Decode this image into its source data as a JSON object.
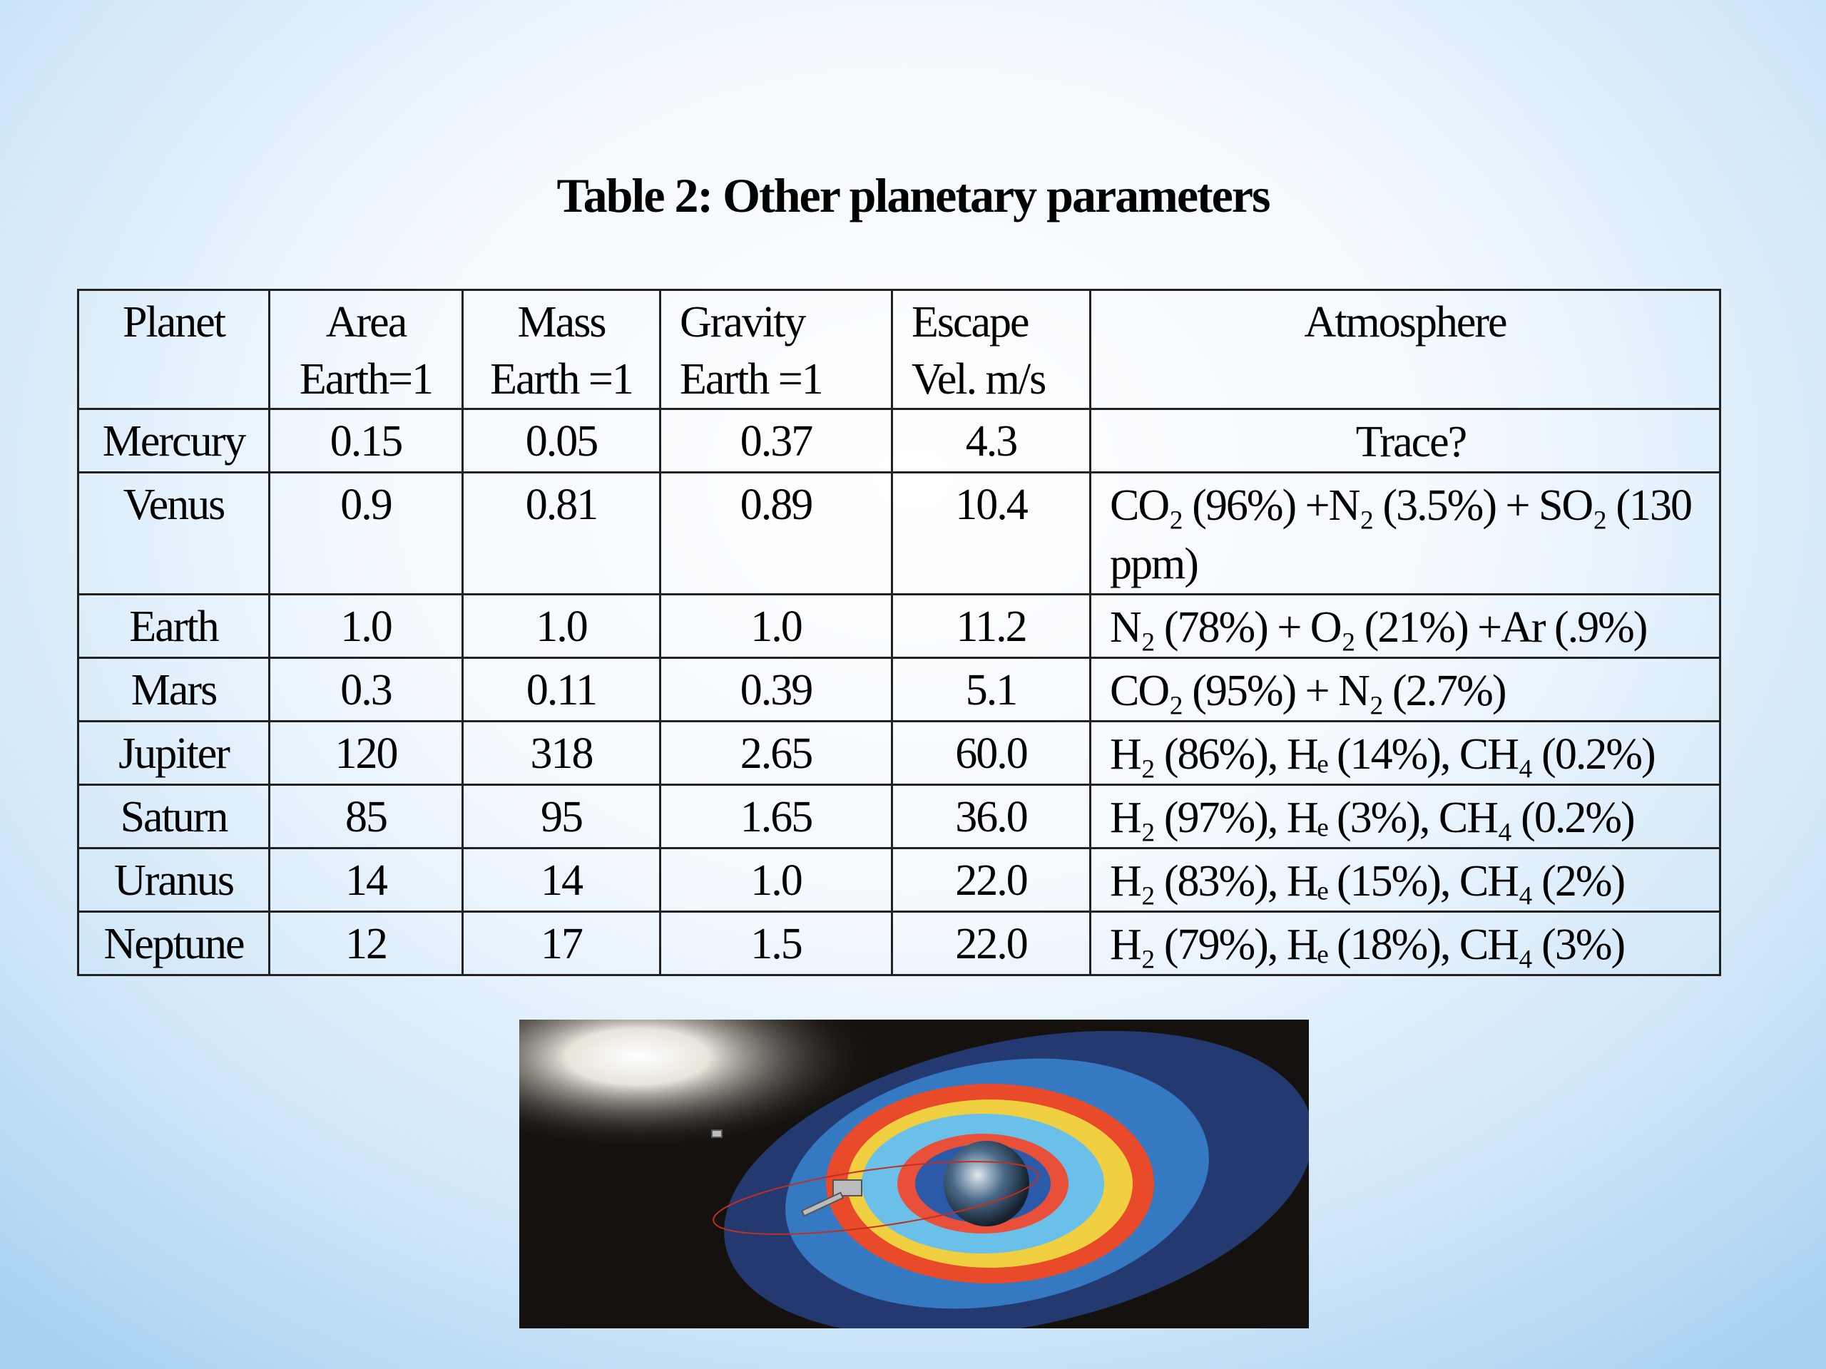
{
  "title": "Table 2: Other planetary parameters",
  "table": {
    "header": [
      [
        "Planet"
      ],
      [
        "Area",
        "Earth=1"
      ],
      [
        "Mass",
        "Earth =1"
      ],
      [
        "Gravity",
        "Earth =1"
      ],
      [
        "Escape",
        "Vel. m/s"
      ],
      [
        "Atmosphere"
      ]
    ],
    "rows": [
      [
        "Mercury",
        "0.15",
        "0.05",
        "0.37",
        "4.3",
        "Trace?"
      ],
      [
        "Venus",
        "0.9",
        "0.81",
        "0.89",
        "10.4",
        "CO₂ (96%) +N₂ (3.5%) + SO₂ (130 ppm)"
      ],
      [
        "Earth",
        "1.0",
        "1.0",
        "1.0",
        "11.2",
        "N₂ (78%) + O₂ (21%) +Ar (.9%)"
      ],
      [
        "Mars",
        "0.3",
        "0.11",
        "0.39",
        "5.1",
        "CO₂ (95%) + N₂ (2.7%)"
      ],
      [
        "Jupiter",
        "120",
        "318",
        "2.65",
        "60.0",
        "H₂ (86%), Hₑ (14%), CH₄ (0.2%)"
      ],
      [
        "Saturn",
        "85",
        "95",
        "1.65",
        "36.0",
        "H₂ (97%), Hₑ (3%), CH₄ (0.2%)"
      ],
      [
        "Uranus",
        "14",
        "14",
        "1.0",
        "22.0",
        "H₂ (83%), Hₑ (15%), CH₄ (2%)"
      ],
      [
        "Neptune",
        "12",
        "17",
        "1.5",
        "22.0",
        "H₂ (79%), Hₑ (18%), CH₄ (3%)"
      ]
    ]
  }
}
